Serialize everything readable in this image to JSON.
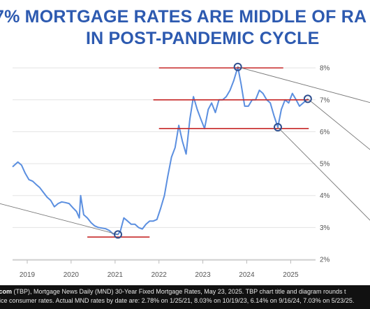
{
  "title": {
    "line1": "7% MORTGAGE RATES ARE MIDDLE OF RA",
    "line2": "IN POST-PANDEMIC CYCLE"
  },
  "source": {
    "prefix": ".com",
    "line1": " (TBP), Mortgage News Daily (MND) 30-Year Fixed Mortgage Rates, May 23, 2025. TBP chart title and diagram rounds t",
    "line2": "rice consumer rates. Actual MND rates by date are: 2.78% on 1/25/21, 8.03% on 10/19/23, 6.14% on 9/16/24, 7.03% on 5/23/25."
  },
  "colors": {
    "title": "#2d5ab0",
    "line": "#5b8fe0",
    "ref_lines": "#c62828",
    "circles": "#2f4f8f",
    "connectors": "#777777",
    "grid": "#e3e3e3",
    "axis_text": "#555555"
  },
  "chart_data": {
    "type": "line",
    "xlabel": "",
    "ylabel": "",
    "x_ticks": [
      "2019",
      "2020",
      "2021",
      "2022",
      "2023",
      "2024",
      "2025"
    ],
    "y_ticks": [
      "2%",
      "3%",
      "4%",
      "5%",
      "6%",
      "7%",
      "8%"
    ],
    "xlim": [
      "2018-09-01",
      "2025-07-15"
    ],
    "ylim": [
      2,
      8.2
    ],
    "grid": "horizontal",
    "y_axis_position": "right",
    "series": [
      {
        "values": [
          [
            "2018-09-01",
            4.9
          ],
          [
            "2018-10-15",
            5.05
          ],
          [
            "2018-11-15",
            4.95
          ],
          [
            "2018-12-15",
            4.7
          ],
          [
            "2019-01-15",
            4.5
          ],
          [
            "2019-02-15",
            4.45
          ],
          [
            "2019-03-15",
            4.35
          ],
          [
            "2019-04-15",
            4.25
          ],
          [
            "2019-05-15",
            4.1
          ],
          [
            "2019-06-15",
            3.95
          ],
          [
            "2019-07-15",
            3.85
          ],
          [
            "2019-08-15",
            3.65
          ],
          [
            "2019-09-15",
            3.75
          ],
          [
            "2019-10-15",
            3.8
          ],
          [
            "2019-11-15",
            3.78
          ],
          [
            "2019-12-15",
            3.75
          ],
          [
            "2020-01-15",
            3.62
          ],
          [
            "2020-02-15",
            3.5
          ],
          [
            "2020-03-09",
            3.3
          ],
          [
            "2020-03-20",
            4.0
          ],
          [
            "2020-04-15",
            3.4
          ],
          [
            "2020-05-15",
            3.3
          ],
          [
            "2020-06-15",
            3.15
          ],
          [
            "2020-07-15",
            3.05
          ],
          [
            "2020-08-15",
            3.0
          ],
          [
            "2020-09-15",
            2.98
          ],
          [
            "2020-10-15",
            2.96
          ],
          [
            "2020-11-15",
            2.9
          ],
          [
            "2020-12-15",
            2.8
          ],
          [
            "2021-01-25",
            2.78
          ],
          [
            "2021-02-15",
            2.9
          ],
          [
            "2021-03-15",
            3.3
          ],
          [
            "2021-04-15",
            3.2
          ],
          [
            "2021-05-15",
            3.1
          ],
          [
            "2021-06-15",
            3.1
          ],
          [
            "2021-07-15",
            3.0
          ],
          [
            "2021-08-15",
            2.95
          ],
          [
            "2021-09-15",
            3.1
          ],
          [
            "2021-10-15",
            3.2
          ],
          [
            "2021-11-15",
            3.2
          ],
          [
            "2021-12-15",
            3.25
          ],
          [
            "2022-01-15",
            3.6
          ],
          [
            "2022-02-15",
            4.0
          ],
          [
            "2022-03-15",
            4.6
          ],
          [
            "2022-04-15",
            5.2
          ],
          [
            "2022-05-15",
            5.5
          ],
          [
            "2022-06-15",
            6.2
          ],
          [
            "2022-07-15",
            5.7
          ],
          [
            "2022-08-15",
            5.3
          ],
          [
            "2022-09-15",
            6.4
          ],
          [
            "2022-10-15",
            7.1
          ],
          [
            "2022-11-15",
            6.7
          ],
          [
            "2022-12-15",
            6.4
          ],
          [
            "2023-01-15",
            6.1
          ],
          [
            "2023-02-15",
            6.7
          ],
          [
            "2023-03-15",
            6.9
          ],
          [
            "2023-04-15",
            6.6
          ],
          [
            "2023-05-15",
            7.0
          ],
          [
            "2023-06-15",
            7.0
          ],
          [
            "2023-07-15",
            7.1
          ],
          [
            "2023-08-15",
            7.3
          ],
          [
            "2023-09-15",
            7.6
          ],
          [
            "2023-10-19",
            8.03
          ],
          [
            "2023-11-15",
            7.5
          ],
          [
            "2023-12-15",
            6.8
          ],
          [
            "2024-01-15",
            6.8
          ],
          [
            "2024-02-15",
            7.0
          ],
          [
            "2024-03-15",
            7.0
          ],
          [
            "2024-04-15",
            7.3
          ],
          [
            "2024-05-15",
            7.2
          ],
          [
            "2024-06-15",
            7.0
          ],
          [
            "2024-07-15",
            6.9
          ],
          [
            "2024-08-15",
            6.5
          ],
          [
            "2024-09-16",
            6.14
          ],
          [
            "2024-10-15",
            6.7
          ],
          [
            "2024-11-15",
            7.0
          ],
          [
            "2024-12-15",
            6.9
          ],
          [
            "2025-01-15",
            7.2
          ],
          [
            "2025-02-15",
            7.0
          ],
          [
            "2025-03-15",
            6.8
          ],
          [
            "2025-04-15",
            6.9
          ],
          [
            "2025-05-23",
            7.03
          ]
        ]
      }
    ],
    "markers": [
      {
        "x": "2021-01-25",
        "y": 2.78
      },
      {
        "x": "2023-10-19",
        "y": 8.03
      },
      {
        "x": "2024-09-16",
        "y": 6.14
      },
      {
        "x": "2025-05-23",
        "y": 7.03
      }
    ],
    "reference_lines": [
      {
        "y": 8.0,
        "x_from": "2022-01-01",
        "x_to": "2024-10-31"
      },
      {
        "y": 7.0,
        "x_from": "2021-11-15",
        "x_to": "2025-05-31"
      },
      {
        "y": 6.1,
        "x_from": "2022-01-01",
        "x_to": "2025-05-31"
      },
      {
        "y": 2.7,
        "x_from": "2020-05-15",
        "x_to": "2021-10-15"
      }
    ]
  }
}
